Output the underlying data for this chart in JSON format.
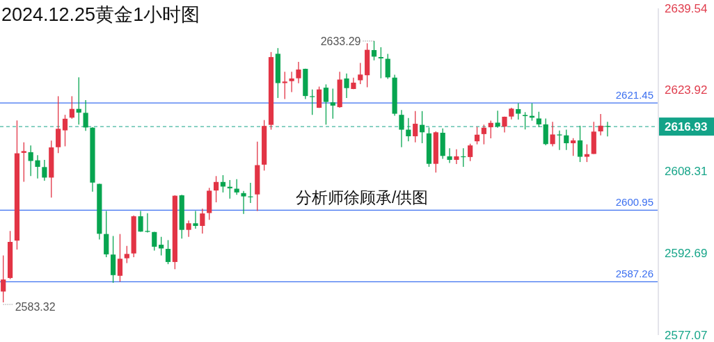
{
  "chart_data": {
    "type": "candlestick",
    "title": "2024.12.25黄金1小时图",
    "categories": [
      null,
      null,
      null,
      null,
      null,
      null,
      null,
      null,
      null,
      null,
      null,
      null,
      null,
      null,
      null,
      null,
      null,
      null,
      null,
      null,
      null,
      null,
      null,
      null,
      null,
      null,
      null,
      null,
      null,
      null,
      null,
      null,
      null,
      null,
      null,
      null,
      null,
      null,
      null,
      null,
      null,
      null,
      null,
      null,
      null,
      null,
      null,
      null,
      null,
      null,
      null,
      null,
      null,
      null,
      null,
      null,
      null,
      null,
      null,
      null,
      null,
      null,
      null,
      null,
      null,
      null,
      null,
      null,
      null,
      null,
      null,
      null,
      null,
      null,
      null,
      null,
      null,
      null,
      null,
      null,
      null,
      null,
      null,
      null,
      null,
      null,
      null,
      null,
      null
    ],
    "ohlc": [
      [
        2585.39,
        2592.29,
        2583.32,
        2587.69
      ],
      [
        2587.98,
        2596.97,
        2587.77,
        2594.88
      ],
      [
        2595.13,
        2618.1,
        2593.42,
        2611.82
      ],
      [
        2611.91,
        2613.91,
        2606.39,
        2612.24
      ],
      [
        2612.03,
        2613.33,
        2607.47,
        2610.36
      ],
      [
        2610.48,
        2611.45,
        2607.01,
        2609.23
      ],
      [
        2609.19,
        2610.57,
        2606.59,
        2607.18
      ],
      [
        2607.18,
        2614.25,
        2603.37,
        2612.95
      ],
      [
        2612.99,
        2622.74,
        2611.86,
        2616.51
      ],
      [
        2616.21,
        2619.18,
        2613.16,
        2618.43
      ],
      [
        2618.64,
        2622.74,
        2618.43,
        2620.31
      ],
      [
        2620.31,
        2626.34,
        2617.3,
        2619.6
      ],
      [
        2619.56,
        2621.99,
        2616.13,
        2616.76
      ],
      [
        2616.72,
        2616.8,
        2604.5,
        2606.22
      ],
      [
        2605.97,
        2606.0,
        2595.34,
        2596.43
      ],
      [
        2596.39,
        2600.78,
        2591.96,
        2592.5
      ],
      [
        2592.46,
        2596.01,
        2587.06,
        2588.53
      ],
      [
        2588.4,
        2596.39,
        2587.27,
        2591.66
      ],
      [
        2591.75,
        2594.13,
        2590.83,
        2592.58
      ],
      [
        2592.67,
        2599.94,
        2591.96,
        2599.78
      ],
      [
        2599.78,
        2600.78,
        2596.8,
        2596.85
      ],
      [
        2596.98,
        2600.36,
        2596.68,
        2596.81
      ],
      [
        2596.77,
        2596.8,
        2593.21,
        2593.96
      ],
      [
        2594.34,
        2595.85,
        2592.29,
        2593.63
      ],
      [
        2593.55,
        2595.22,
        2590.62,
        2591.04
      ],
      [
        2591.04,
        2603.8,
        2589.66,
        2603.71
      ],
      [
        2603.79,
        2603.88,
        2595.51,
        2597.18
      ],
      [
        2597.18,
        2598.98,
        2595.85,
        2598.44
      ],
      [
        2598.44,
        2600.78,
        2597.39,
        2597.94
      ],
      [
        2597.94,
        2601.24,
        2596.47,
        2600.32
      ],
      [
        2600.4,
        2605.21,
        2599.11,
        2604.67
      ],
      [
        2604.71,
        2607.47,
        2602.45,
        2606.34
      ],
      [
        2606.34,
        2607.64,
        2604.34,
        2605.46
      ],
      [
        2605.42,
        2606.72,
        2603.16,
        2605.13
      ],
      [
        2605.05,
        2606.89,
        2603.88,
        2604.34
      ],
      [
        2604.21,
        2604.63,
        2600.24,
        2603.58
      ],
      [
        2603.58,
        2606.18,
        2602.33,
        2603.42
      ],
      [
        2603.96,
        2614.04,
        2600.78,
        2609.56
      ],
      [
        2609.65,
        2618.18,
        2608.52,
        2617.05
      ],
      [
        2617.26,
        2631.19,
        2616.34,
        2630.22
      ],
      [
        2630.85,
        2631.94,
        2622.4,
        2625.25
      ],
      [
        2625.25,
        2627.42,
        2622.19,
        2625.54
      ],
      [
        2625.62,
        2627.42,
        2623.53,
        2626.13
      ],
      [
        2626.17,
        2629.3,
        2625.21,
        2627.84
      ],
      [
        2627.97,
        2628.0,
        2622.19,
        2622.78
      ],
      [
        2622.74,
        2624.03,
        2619.18,
        2622.61
      ],
      [
        2620.52,
        2624.58,
        2620.5,
        2624.03
      ],
      [
        2624.37,
        2625.0,
        2617.3,
        2621.65
      ],
      [
        2621.57,
        2624.2,
        2618.43,
        2620.94
      ],
      [
        2620.65,
        2627.42,
        2620.52,
        2625.92
      ],
      [
        2626.13,
        2627.09,
        2622.4,
        2624.29
      ],
      [
        2624.12,
        2626.29,
        2624.1,
        2625.33
      ],
      [
        2625.79,
        2629.1,
        2625.04,
        2626.88
      ],
      [
        2626.75,
        2632.86,
        2624.45,
        2631.61
      ],
      [
        2631.56,
        2633.29,
        2629.6,
        2630.31
      ],
      [
        2630.22,
        2632.11,
        2626.17,
        2629.97
      ],
      [
        2629.89,
        2630.85,
        2626.04,
        2626.34
      ],
      [
        2626.29,
        2626.84,
        2619.02,
        2619.39
      ],
      [
        2619.18,
        2620.1,
        2612.99,
        2616.34
      ],
      [
        2616.34,
        2618.56,
        2614.12,
        2615.08
      ],
      [
        2615.08,
        2619.89,
        2613.91,
        2617.47
      ],
      [
        2617.26,
        2619.89,
        2613.75,
        2615.84
      ],
      [
        2615.63,
        2616.76,
        2609.23,
        2609.81
      ],
      [
        2609.81,
        2616.0,
        2608.14,
        2615.84
      ],
      [
        2615.75,
        2616.59,
        2610.78,
        2611.32
      ],
      [
        2611.24,
        2612.78,
        2609.98,
        2610.57
      ],
      [
        2610.57,
        2612.58,
        2609.77,
        2611.24
      ],
      [
        2611.24,
        2612.78,
        2609.23,
        2611.11
      ],
      [
        2611.11,
        2613.66,
        2610.32,
        2613.33
      ],
      [
        2614.12,
        2616.88,
        2613.54,
        2615.38
      ],
      [
        2615.5,
        2617.3,
        2613.54,
        2616.72
      ],
      [
        2616.8,
        2618.06,
        2614.67,
        2617.64
      ],
      [
        2617.68,
        2619.98,
        2616.72,
        2616.93
      ],
      [
        2616.93,
        2618.85,
        2615.8,
        2618.81
      ],
      [
        2618.85,
        2620.52,
        2618.31,
        2620.36
      ],
      [
        2620.27,
        2621.4,
        2618.27,
        2619.4
      ],
      [
        2619.14,
        2619.69,
        2616.38,
        2618.94
      ],
      [
        2618.98,
        2621.4,
        2618.06,
        2618.64
      ],
      [
        2618.48,
        2619.77,
        2616.8,
        2617.35
      ],
      [
        2617.35,
        2618.48,
        2613.37,
        2613.58
      ],
      [
        2613.58,
        2617.85,
        2613.16,
        2615.42
      ],
      [
        2615.42,
        2616.18,
        2612.45,
        2615.25
      ],
      [
        2615.25,
        2616.34,
        2612.45,
        2613.75
      ],
      [
        2613.75,
        2614.71,
        2611.32,
        2614.29
      ],
      [
        2614.29,
        2617.1,
        2610.15,
        2611.16
      ],
      [
        2611.16,
        2613.54,
        2610.15,
        2611.66
      ],
      [
        2611.7,
        2617.85,
        2611.7,
        2615.97
      ],
      [
        2616.01,
        2619.35,
        2615.25,
        2617.1
      ],
      [
        2617.05,
        2617.85,
        2615.05,
        2616.93
      ]
    ],
    "colors": [
      "#e23445",
      "#e23445",
      "#e23445",
      "#e23445",
      "#07a550",
      "#07a550",
      "#07a550",
      "#e23445",
      "#e23445",
      "#e23445",
      "#e23445",
      "#07a550",
      "#07a550",
      "#07a550",
      "#07a550",
      "#07a550",
      "#07a550",
      "#e23445",
      "#e23445",
      "#e23445",
      "#07a550",
      "#07a550",
      "#07a550",
      "#07a550",
      "#07a550",
      "#e23445",
      "#07a550",
      "#e23445",
      "#07a550",
      "#e23445",
      "#e23445",
      "#e23445",
      "#07a550",
      "#07a550",
      "#07a550",
      "#07a550",
      "#07a550",
      "#e23445",
      "#e23445",
      "#e23445",
      "#07a550",
      "#e23445",
      "#e23445",
      "#e23445",
      "#07a550",
      "#07a550",
      "#e23445",
      "#07a550",
      "#07a550",
      "#e23445",
      "#07a550",
      "#e23445",
      "#e23445",
      "#e23445",
      "#07a550",
      "#07a550",
      "#07a550",
      "#07a550",
      "#07a550",
      "#07a550",
      "#e23445",
      "#07a550",
      "#07a550",
      "#e23445",
      "#07a550",
      "#07a550",
      "#e23445",
      "#07a550",
      "#e23445",
      "#e23445",
      "#e23445",
      "#e23445",
      "#07a550",
      "#e23445",
      "#e23445",
      "#07a550",
      "#07a550",
      "#07a550",
      "#07a550",
      "#07a550",
      "#e23445",
      "#07a550",
      "#07a550",
      "#e23445",
      "#07a550",
      "#e23445",
      "#e23445",
      "#e23445",
      "#07a550"
    ],
    "ylim": [
      2577.07,
      2639.54
    ],
    "yticks": [
      2639.54,
      2623.92,
      2608.31,
      2592.69,
      2577.07
    ],
    "ref_lines": [
      {
        "axis": "y",
        "value": 2621.45,
        "label": "2621.45",
        "color": "#3b6ff0"
      },
      {
        "axis": "y",
        "value": 2600.95,
        "label": "2600.95",
        "color": "#3b6ff0"
      },
      {
        "axis": "y",
        "value": 2587.26,
        "label": "2587.26",
        "color": "#3b6ff0"
      },
      {
        "axis": "y",
        "value": 2616.93,
        "label": "2616.93",
        "color": "#13a388",
        "line_style": "dashed"
      }
    ],
    "annotations": [
      "2633.29",
      "2583.32",
      "分析师徐顾承/供图"
    ]
  }
}
